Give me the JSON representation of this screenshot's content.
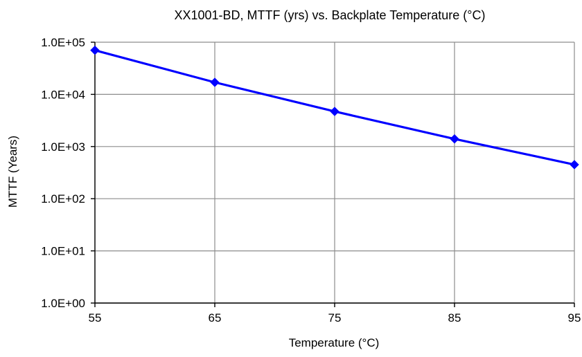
{
  "chart_data": {
    "type": "line",
    "title": "XX1001-BD, MTTF (yrs) vs. Backplate Temperature (°C)",
    "xlabel": "Temperature (°C)",
    "ylabel": "MTTF (Years)",
    "y_scale": "log",
    "xlim": [
      55,
      95
    ],
    "ylim": [
      1,
      100000
    ],
    "x_ticks": [
      "55",
      "65",
      "75",
      "85",
      "95"
    ],
    "x_tick_values": [
      55,
      65,
      75,
      85,
      95
    ],
    "y_ticks": [
      "1.0E+00",
      "1.0E+01",
      "1.0E+02",
      "1.0E+03",
      "1.0E+04",
      "1.0E+05"
    ],
    "y_tick_values": [
      1,
      10,
      100,
      1000,
      10000,
      100000
    ],
    "grid": true,
    "legend": "none",
    "series": [
      {
        "color": "#0000ff",
        "marker": "diamond",
        "x": [
          55,
          65,
          75,
          85,
          95
        ],
        "y": [
          70000,
          17000,
          4700,
          1400,
          450
        ]
      }
    ]
  }
}
